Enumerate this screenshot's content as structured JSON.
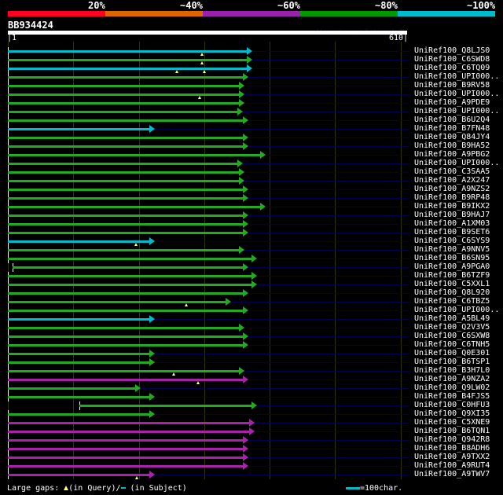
{
  "score_scale": {
    "labels": [
      "20%",
      "~40%",
      "~60%",
      "~80%",
      "~100%"
    ],
    "colors": [
      "#ff0022",
      "#dd6600",
      "#9922aa",
      "#009900",
      "#00bbcc"
    ]
  },
  "query": {
    "title": "BB934424",
    "credit": "AlignView.pm Beta rel.7",
    "start_label": "|1",
    "end_label": "610|",
    "length": 610
  },
  "colors": {
    "cyan": "#00bbcc",
    "green": "#22aa22",
    "magenta": "#aa22aa",
    "subject": "#000050"
  },
  "hits": [
    {
      "label": "UniRef100_Q8LJS0",
      "color": "cyan",
      "start": 1,
      "end": 372,
      "gaps": [
        297
      ]
    },
    {
      "label": "UniRef100_C6SWD8",
      "color": "green",
      "start": 1,
      "end": 372,
      "gaps": [
        297
      ]
    },
    {
      "label": "UniRef100_C6TQ09",
      "color": "cyan",
      "start": 1,
      "end": 372,
      "gaps": [
        258,
        300
      ]
    },
    {
      "label": "UniRef100_UPI000..",
      "color": "green",
      "start": 1,
      "end": 366,
      "gaps": []
    },
    {
      "label": "UniRef100_B9RV58",
      "color": "green",
      "start": 1,
      "end": 360,
      "gaps": []
    },
    {
      "label": "UniRef100_UPI000..",
      "color": "green",
      "start": 1,
      "end": 360,
      "gaps": [
        293
      ]
    },
    {
      "label": "UniRef100_A9PDE9",
      "color": "green",
      "start": 1,
      "end": 360,
      "gaps": []
    },
    {
      "label": "UniRef100_UPI000..",
      "color": "green",
      "start": 1,
      "end": 358,
      "gaps": []
    },
    {
      "label": "UniRef100_B6U2Q4",
      "color": "green",
      "start": 1,
      "end": 366,
      "gaps": []
    },
    {
      "label": "UniRef100_B7FN48",
      "color": "cyan",
      "start": 1,
      "end": 223,
      "gaps": []
    },
    {
      "label": "UniRef100_Q84JY4",
      "color": "green",
      "start": 1,
      "end": 366,
      "gaps": []
    },
    {
      "label": "UniRef100_B9HA52",
      "color": "green",
      "start": 1,
      "end": 366,
      "gaps": []
    },
    {
      "label": "UniRef100_A9PBG2",
      "color": "green",
      "start": 1,
      "end": 393,
      "gaps": []
    },
    {
      "label": "UniRef100_UPI000..",
      "color": "green",
      "start": 1,
      "end": 358,
      "gaps": []
    },
    {
      "label": "UniRef100_C3SAA5",
      "color": "green",
      "start": 1,
      "end": 360,
      "gaps": []
    },
    {
      "label": "UniRef100_A2X247",
      "color": "green",
      "start": 1,
      "end": 360,
      "gaps": []
    },
    {
      "label": "UniRef100_A9NZS2",
      "color": "green",
      "start": 1,
      "end": 366,
      "gaps": []
    },
    {
      "label": "UniRef100_B9RP48",
      "color": "green",
      "start": 1,
      "end": 366,
      "gaps": []
    },
    {
      "label": "UniRef100_B9IKX2",
      "color": "green",
      "start": 1,
      "end": 393,
      "gaps": []
    },
    {
      "label": "UniRef100_B9HAJ7",
      "color": "green",
      "start": 1,
      "end": 366,
      "gaps": []
    },
    {
      "label": "UniRef100_A1XM03",
      "color": "green",
      "start": 1,
      "end": 366,
      "gaps": []
    },
    {
      "label": "UniRef100_B9SET6",
      "color": "green",
      "start": 1,
      "end": 366,
      "gaps": []
    },
    {
      "label": "UniRef100_C6SYS9",
      "color": "cyan",
      "start": 1,
      "end": 223,
      "gaps": [
        196
      ]
    },
    {
      "label": "UniRef100_A9NNV5",
      "color": "green",
      "start": 1,
      "end": 360,
      "gaps": []
    },
    {
      "label": "UniRef100_B6SN95",
      "color": "green",
      "start": 1,
      "end": 379,
      "gaps": []
    },
    {
      "label": "UniRef100_A9PGA0",
      "color": "green",
      "start": 8,
      "end": 366,
      "gaps": []
    },
    {
      "label": "UniRef100_B6TZF9",
      "color": "green",
      "start": 1,
      "end": 379,
      "gaps": []
    },
    {
      "label": "UniRef100_C5XXL1",
      "color": "green",
      "start": 1,
      "end": 379,
      "gaps": []
    },
    {
      "label": "UniRef100_Q8L920",
      "color": "green",
      "start": 1,
      "end": 366,
      "gaps": []
    },
    {
      "label": "UniRef100_C6TBZ5",
      "color": "green",
      "start": 1,
      "end": 340,
      "gaps": [
        272
      ]
    },
    {
      "label": "UniRef100_UPI000..",
      "color": "green",
      "start": 1,
      "end": 366,
      "gaps": []
    },
    {
      "label": "UniRef100_A5BL49",
      "color": "cyan",
      "start": 1,
      "end": 223,
      "gaps": []
    },
    {
      "label": "UniRef100_Q2V3V5",
      "color": "green",
      "start": 1,
      "end": 360,
      "gaps": []
    },
    {
      "label": "UniRef100_C6SXW8",
      "color": "green",
      "start": 1,
      "end": 366,
      "gaps": []
    },
    {
      "label": "UniRef100_C6TNH5",
      "color": "green",
      "start": 1,
      "end": 366,
      "gaps": []
    },
    {
      "label": "UniRef100_Q0E301",
      "color": "green",
      "start": 1,
      "end": 223,
      "gaps": []
    },
    {
      "label": "UniRef100_B6TSP1",
      "color": "green",
      "start": 1,
      "end": 223,
      "gaps": []
    },
    {
      "label": "UniRef100_B3H7L0",
      "color": "green",
      "start": 1,
      "end": 360,
      "gaps": [
        253
      ]
    },
    {
      "label": "UniRef100_A9NZA2",
      "color": "magenta",
      "start": 1,
      "end": 366,
      "gaps": [
        290
      ]
    },
    {
      "label": "UniRef100_Q9LW02",
      "color": "green",
      "start": 1,
      "end": 202,
      "gaps": []
    },
    {
      "label": "UniRef100_B4FJS5",
      "color": "green",
      "start": 1,
      "end": 223,
      "gaps": []
    },
    {
      "label": "UniRef100_C0HFU3",
      "color": "green",
      "start": 110,
      "end": 379,
      "gaps": []
    },
    {
      "label": "UniRef100_Q9XI35",
      "color": "green",
      "start": 1,
      "end": 223,
      "gaps": []
    },
    {
      "label": "UniRef100_C5XNE9",
      "color": "magenta",
      "start": 1,
      "end": 376,
      "gaps": []
    },
    {
      "label": "UniRef100_B6TQN1",
      "color": "magenta",
      "start": 1,
      "end": 376,
      "gaps": []
    },
    {
      "label": "UniRef100_Q942R8",
      "color": "magenta",
      "start": 1,
      "end": 366,
      "gaps": []
    },
    {
      "label": "UniRef100_B8ADH6",
      "color": "magenta",
      "start": 1,
      "end": 366,
      "gaps": []
    },
    {
      "label": "UniRef100_A9TXX2",
      "color": "magenta",
      "start": 1,
      "end": 366,
      "gaps": []
    },
    {
      "label": "UniRef100_A9RUT4",
      "color": "magenta",
      "start": 1,
      "end": 366,
      "gaps": []
    },
    {
      "label": "UniRef100_A9TWV7",
      "color": "magenta",
      "start": 1,
      "end": 223,
      "gaps": [
        197
      ]
    }
  ],
  "legend": {
    "text_a": "Large gaps:",
    "text_b": "(in Query)/",
    "text_c": "(in Subject)",
    "scale_text": "=100char."
  }
}
